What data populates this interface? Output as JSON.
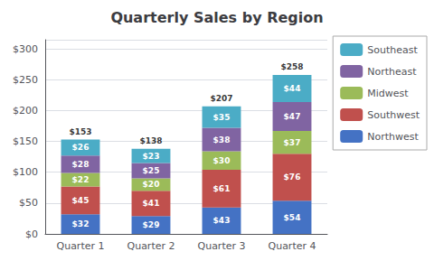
{
  "chart_data": {
    "type": "bar",
    "title": "Quarterly Sales by Region",
    "categories": [
      "Quarter 1",
      "Quarter 2",
      "Quarter 3",
      "Quarter 4"
    ],
    "stacked": true,
    "data_labels": true,
    "series": [
      {
        "name": "Northwest",
        "color": "#4472C4",
        "values": [
          32,
          29,
          43,
          54
        ],
        "value_labels": [
          "$32",
          "$29",
          "$43",
          "$54"
        ]
      },
      {
        "name": "Southwest",
        "color": "#C0504D",
        "values": [
          45,
          41,
          61,
          76
        ],
        "value_labels": [
          "$45",
          "$41",
          "$61",
          "$76"
        ]
      },
      {
        "name": "Midwest",
        "color": "#9BBB59",
        "values": [
          22,
          20,
          30,
          37
        ],
        "value_labels": [
          "$22",
          "$20",
          "$30",
          "$37"
        ]
      },
      {
        "name": "Northeast",
        "color": "#8064A2",
        "values": [
          28,
          25,
          38,
          47
        ],
        "value_labels": [
          "$28",
          "$25",
          "$38",
          "$47"
        ]
      },
      {
        "name": "Southeast",
        "color": "#4BACC6",
        "values": [
          26,
          23,
          35,
          44
        ],
        "value_labels": [
          "$26",
          "$23",
          "$35",
          "$44"
        ]
      }
    ],
    "totals": [
      153,
      138,
      207,
      258
    ],
    "total_labels": [
      "$153",
      "$138",
      "$207",
      "$258"
    ],
    "ylim": [
      0,
      315
    ],
    "yticks": [
      {
        "value": 0,
        "label": "$0"
      },
      {
        "value": 50,
        "label": "$50"
      },
      {
        "value": 100,
        "label": "$100"
      },
      {
        "value": 150,
        "label": "$150"
      },
      {
        "value": 200,
        "label": "$200"
      },
      {
        "value": 250,
        "label": "$250"
      },
      {
        "value": 300,
        "label": "$300"
      }
    ],
    "grid": true,
    "legend": "right"
  }
}
